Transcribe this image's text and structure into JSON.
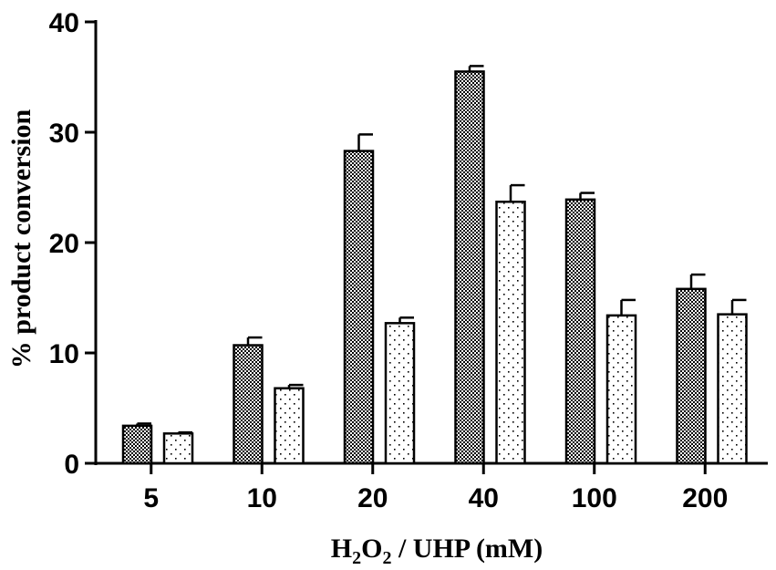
{
  "chart_data": {
    "type": "bar",
    "categories": [
      "5",
      "10",
      "20",
      "40",
      "100",
      "200"
    ],
    "series": [
      {
        "pattern": "checkered",
        "values": [
          3.4,
          10.7,
          28.3,
          35.5,
          23.9,
          15.8
        ],
        "errors": [
          0.2,
          0.7,
          1.5,
          0.5,
          0.6,
          1.3
        ]
      },
      {
        "pattern": "dotted",
        "values": [
          2.7,
          6.8,
          12.7,
          23.7,
          13.4,
          13.5
        ],
        "errors": [
          0.1,
          0.3,
          0.5,
          1.5,
          1.4,
          1.3
        ]
      }
    ],
    "ylabel": "% product conversion",
    "xlabel": {
      "h": "H",
      "sub1": "2",
      "o": "O",
      "sub2": "2",
      "rest": " / UHP (mM)"
    },
    "ylim": [
      0,
      40
    ],
    "yticks": [
      "0",
      "10",
      "20",
      "30",
      "40"
    ],
    "grid": false,
    "colors": {
      "bar_fill": "#ffffff",
      "ink": "#000000"
    }
  }
}
